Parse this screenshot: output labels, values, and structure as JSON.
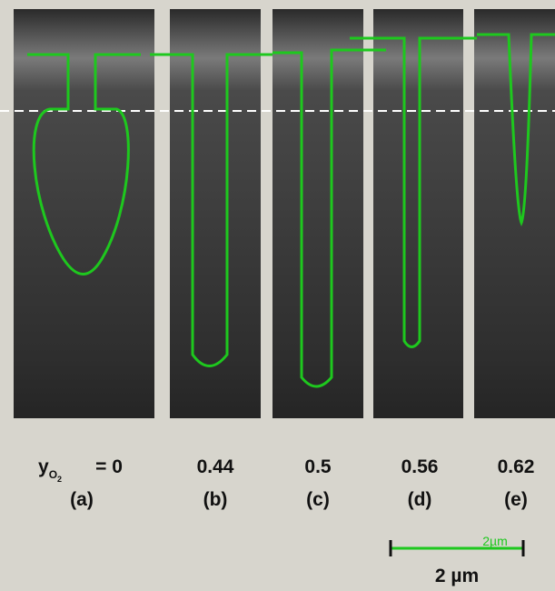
{
  "variable": "y",
  "subscript": "O",
  "subsubscript": "2",
  "panels": [
    {
      "value": "= 0",
      "letter": "(a)"
    },
    {
      "value": "0.44",
      "letter": "(b)"
    },
    {
      "value": "0.5",
      "letter": "(c)"
    },
    {
      "value": "0.56",
      "letter": "(d)"
    },
    {
      "value": "0.62",
      "letter": "(e)"
    }
  ],
  "scale_bar": {
    "overlay_label": "2µm",
    "label": "2 µm"
  }
}
